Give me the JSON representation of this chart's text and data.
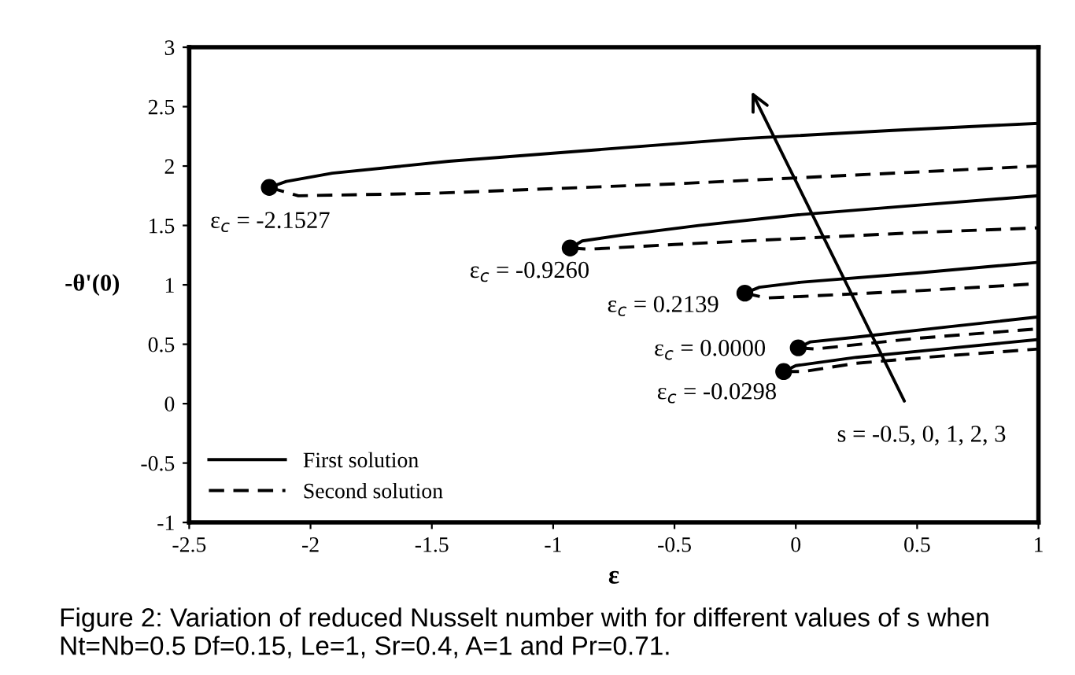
{
  "chart_data": {
    "type": "line",
    "xlabel": "ε",
    "ylabel": "-θ'(0)",
    "xlim": [
      -2.5,
      1
    ],
    "ylim": [
      -1,
      3
    ],
    "xticks": [
      -2.5,
      -2,
      -1.5,
      -1,
      -0.5,
      0,
      0.5,
      1
    ],
    "yticks": [
      -1,
      -0.5,
      0,
      0.5,
      1,
      1.5,
      2,
      2.5,
      3
    ],
    "grid": false,
    "legend": "bottom left",
    "series": [
      {
        "name": "First solution",
        "color": "#000000",
        "line_style": "solid",
        "x": [
          -2.17,
          -2.1,
          -1.91,
          -1.43,
          -0.8,
          -0.23,
          0.4,
          1.0
        ],
        "values": [
          1.82,
          1.87,
          1.94,
          2.04,
          2.14,
          2.23,
          2.3,
          2.36
        ]
      },
      {
        "name": "Second solution",
        "color": "#000000",
        "line_style": "dashed",
        "x": [
          -2.17,
          -2.05,
          -1.5,
          -0.5,
          0.3,
          1.0
        ],
        "values": [
          1.82,
          1.75,
          1.77,
          1.85,
          1.93,
          2.0
        ]
      },
      {
        "color": "#000000",
        "line_style": "solid",
        "x": [
          -0.93,
          -0.88,
          -0.71,
          -0.4,
          0.01,
          0.5,
          1.0
        ],
        "values": [
          1.31,
          1.37,
          1.42,
          1.5,
          1.59,
          1.67,
          1.75
        ]
      },
      {
        "color": "#000000",
        "line_style": "dashed",
        "x": [
          -0.93,
          -0.85,
          -0.5,
          0.0,
          0.5,
          1.0
        ],
        "values": [
          1.31,
          1.3,
          1.34,
          1.39,
          1.44,
          1.48
        ]
      },
      {
        "color": "#000000",
        "line_style": "solid",
        "x": [
          -0.21,
          -0.15,
          0.01,
          0.5,
          1.0
        ],
        "values": [
          0.93,
          0.98,
          1.02,
          1.1,
          1.19
        ]
      },
      {
        "color": "#000000",
        "line_style": "dashed",
        "x": [
          -0.21,
          -0.12,
          0.0,
          0.5,
          1.0
        ],
        "values": [
          0.93,
          0.89,
          0.9,
          0.95,
          1.01
        ]
      },
      {
        "color": "#000000",
        "line_style": "solid",
        "x": [
          0.01,
          0.06,
          0.25,
          0.6,
          1.0
        ],
        "values": [
          0.47,
          0.52,
          0.56,
          0.64,
          0.73
        ]
      },
      {
        "color": "#000000",
        "line_style": "dashed",
        "x": [
          0.01,
          0.08,
          0.5,
          1.0
        ],
        "values": [
          0.47,
          0.46,
          0.55,
          0.63
        ]
      },
      {
        "color": "#000000",
        "line_style": "solid",
        "x": [
          -0.05,
          0.0,
          0.25,
          0.6,
          1.0
        ],
        "values": [
          0.27,
          0.32,
          0.39,
          0.46,
          0.54
        ]
      },
      {
        "color": "#000000",
        "line_style": "dashed",
        "x": [
          -0.05,
          0.03,
          0.25,
          0.6,
          1.0
        ],
        "values": [
          0.27,
          0.27,
          0.34,
          0.4,
          0.46
        ]
      },
      {
        "type": "scatter",
        "color": "#000000",
        "marker": "circle",
        "x": [
          -2.17,
          -0.93,
          -0.21,
          0.01,
          -0.05
        ],
        "values": [
          1.82,
          1.31,
          0.93,
          0.47,
          0.27
        ]
      }
    ],
    "annotations": [
      {
        "text": "ε$_{c}$ = -2.1527",
        "x": -2.17,
        "y": 1.82
      },
      {
        "text": "ε$_{c}$ = -0.9260",
        "x": -0.93,
        "y": 1.31
      },
      {
        "text": "ε$_{c}$ = 0.2139",
        "x": -0.21,
        "y": 0.93
      },
      {
        "text": "ε$_{c}$ = 0.0000",
        "x": 0.01,
        "y": 0.47
      },
      {
        "text": "ε$_{c}$ = -0.0298",
        "x": -0.05,
        "y": 0.27
      },
      "s = -0.5, 0, 1, 2, 3",
      "Figure 2: Variation of reduced Nusselt number with for different values of s when Nt=Nb=0.5 Df=0.15, Le=1, Sr=0.4, A=1 and Pr=0.71."
    ]
  }
}
